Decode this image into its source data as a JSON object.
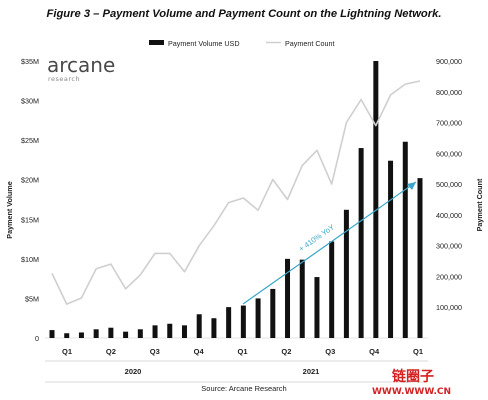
{
  "chart_data": {
    "type": "bar",
    "title": "Figure 3 – Payment Volume and Payment Count on the Lightning Network.",
    "legend": {
      "placement": "top-center",
      "bar_label": "Payment Volume USD",
      "line_label": "Payment Count"
    },
    "y_left": {
      "label": "Payment Volume",
      "ylim": [
        0,
        35
      ],
      "ticks": [
        0,
        5,
        10,
        15,
        20,
        25,
        30,
        35
      ],
      "tick_labels": [
        "0",
        "$5M",
        "$10M",
        "$15M",
        "$20M",
        "$25M",
        "$30M",
        "$35M"
      ]
    },
    "y_right": {
      "label": "Payment Count",
      "ylim": [
        0,
        900000
      ],
      "ticks": [
        100000,
        200000,
        300000,
        400000,
        500000,
        600000,
        700000,
        800000,
        900000
      ],
      "tick_labels": [
        "100,000",
        "200,000",
        "300,000",
        "400,000",
        "500,000",
        "600,000",
        "700,000",
        "800,000",
        "900,000"
      ]
    },
    "quarters": [
      "Q1",
      "Q2",
      "Q3",
      "Q4",
      "Q1",
      "Q2",
      "Q3",
      "Q4",
      "Q1"
    ],
    "years": [
      "2020",
      "2021"
    ],
    "series": [
      {
        "name": "Payment Volume USD",
        "kind": "bar",
        "color": "#111111",
        "values": [
          1.0,
          0.6,
          0.7,
          1.1,
          1.3,
          0.8,
          1.1,
          1.6,
          1.8,
          1.6,
          3.0,
          2.5,
          3.9,
          4.1,
          5.0,
          6.2,
          10.0,
          9.9,
          7.7,
          12.2,
          16.2,
          24.0,
          35.0,
          22.4,
          24.8,
          20.2
        ]
      },
      {
        "name": "Payment Count",
        "kind": "line",
        "color": "#cfcfcf",
        "values": [
          210000,
          110000,
          130000,
          225000,
          240000,
          160000,
          205000,
          275000,
          275000,
          215000,
          300000,
          365000,
          440000,
          455000,
          415000,
          515000,
          450000,
          560000,
          610000,
          500000,
          700000,
          775000,
          690000,
          790000,
          825000,
          835000
        ]
      }
    ],
    "annotations": [
      "+ 410% YoY"
    ]
  },
  "source": "Source: Arcane Research",
  "logo": {
    "name": "arcane",
    "sub": "research"
  },
  "watermark": {
    "text": "链圈子",
    "url": "WWW.WWW.CN"
  },
  "colors": {
    "bars": "#111111",
    "line": "#cfcfcf",
    "annotation": "#3aa6c9",
    "watermark": "#d42222"
  }
}
